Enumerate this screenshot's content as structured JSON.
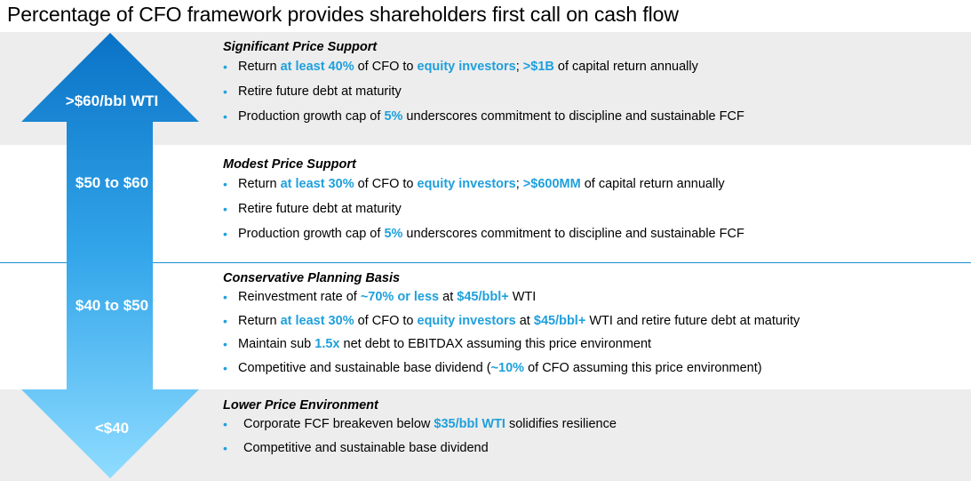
{
  "title": "Percentage of CFO framework provides shareholders first call on cash flow",
  "colors": {
    "accent": "#1fa0dc",
    "band_gray": "#ededed",
    "arrow_top": "#0a72c6",
    "arrow_bottom": "#8fdcff"
  },
  "tiers": [
    {
      "price_label": ">$60/bbl WTI",
      "heading": "Significant Price Support",
      "bullets": [
        [
          {
            "t": "Return "
          },
          {
            "t": "at least 40%",
            "hl": true
          },
          {
            "t": " of CFO to "
          },
          {
            "t": "equity investors",
            "hl": true
          },
          {
            "t": "; "
          },
          {
            "t": ">$1B",
            "hl": true
          },
          {
            "t": " of capital return annually"
          }
        ],
        [
          {
            "t": "Retire future debt at maturity"
          }
        ],
        [
          {
            "t": "Production growth cap of "
          },
          {
            "t": "5%",
            "hl": true
          },
          {
            "t": " underscores commitment to discipline and sustainable FCF"
          }
        ]
      ]
    },
    {
      "price_label": "$50 to $60",
      "heading": "Modest Price Support",
      "bullets": [
        [
          {
            "t": "Return "
          },
          {
            "t": "at least 30%",
            "hl": true
          },
          {
            "t": " of CFO to "
          },
          {
            "t": "equity investors",
            "hl": true
          },
          {
            "t": "; "
          },
          {
            "t": ">$600MM",
            "hl": true
          },
          {
            "t": " of capital return annually"
          }
        ],
        [
          {
            "t": "Retire future debt at maturity"
          }
        ],
        [
          {
            "t": "Production growth cap of "
          },
          {
            "t": "5%",
            "hl": true
          },
          {
            "t": " underscores commitment to discipline and sustainable FCF"
          }
        ]
      ]
    },
    {
      "price_label": "$40 to $50",
      "heading": "Conservative Planning Basis",
      "bullets": [
        [
          {
            "t": "Reinvestment rate of "
          },
          {
            "t": "~70% or less",
            "hl": true
          },
          {
            "t": " at "
          },
          {
            "t": "$45/bbl+",
            "hl": true
          },
          {
            "t": " WTI"
          }
        ],
        [
          {
            "t": "Return "
          },
          {
            "t": "at least 30%",
            "hl": true
          },
          {
            "t": " of CFO to "
          },
          {
            "t": "equity investors",
            "hl": true
          },
          {
            "t": " at "
          },
          {
            "t": "$45/bbl+",
            "hl": true
          },
          {
            "t": " WTI and retire future debt at maturity"
          }
        ],
        [
          {
            "t": "Maintain sub "
          },
          {
            "t": "1.5x",
            "hl": true
          },
          {
            "t": " net debt to EBITDAX assuming this price environment"
          }
        ],
        [
          {
            "t": "Competitive and sustainable base dividend ("
          },
          {
            "t": "~10%",
            "hl": true
          },
          {
            "t": " of CFO assuming this price environment)"
          }
        ]
      ]
    },
    {
      "price_label": "<$40",
      "heading": "Lower Price Environment",
      "bullets": [
        [
          {
            "t": "Corporate FCF breakeven below "
          },
          {
            "t": "$35/bbl WTI",
            "hl": true
          },
          {
            "t": " solidifies resilience"
          }
        ],
        [
          {
            "t": "Competitive and sustainable base dividend"
          }
        ]
      ]
    }
  ]
}
